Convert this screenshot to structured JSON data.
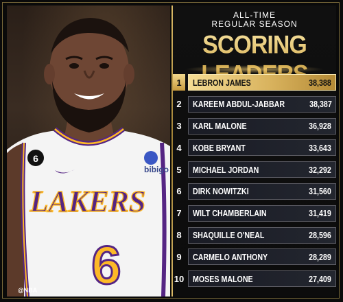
{
  "header": {
    "line1": "ALL-TIME",
    "line2": "REGULAR SEASON",
    "title": "SCORING LEADERS"
  },
  "photo": {
    "credit": "@NBA",
    "jersey_wordmark": "LAKERS",
    "jersey_number": "6",
    "sleeve_patch": "6",
    "sponsor": "bibigo"
  },
  "leaders": [
    {
      "rank": "1",
      "name": "LEBRON JAMES",
      "points": "38,388"
    },
    {
      "rank": "2",
      "name": "KAREEM ABDUL-JABBAR",
      "points": "38,387"
    },
    {
      "rank": "3",
      "name": "KARL MALONE",
      "points": "36,928"
    },
    {
      "rank": "4",
      "name": "KOBE BRYANT",
      "points": "33,643"
    },
    {
      "rank": "5",
      "name": "MICHAEL JORDAN",
      "points": "32,292"
    },
    {
      "rank": "6",
      "name": "DIRK NOWITZKI",
      "points": "31,560"
    },
    {
      "rank": "7",
      "name": "WILT CHAMBERLAIN",
      "points": "31,419"
    },
    {
      "rank": "8",
      "name": "SHAQUILLE O'NEAL",
      "points": "28,596"
    },
    {
      "rank": "9",
      "name": "CARMELO ANTHONY",
      "points": "28,289"
    },
    {
      "rank": "10",
      "name": "MOSES MALONE",
      "points": "27,409"
    }
  ],
  "colors": {
    "gold": "#d9b35a",
    "jersey_white": "#f4f4f4",
    "lakers_purple": "#552583",
    "lakers_gold": "#fdb927"
  }
}
